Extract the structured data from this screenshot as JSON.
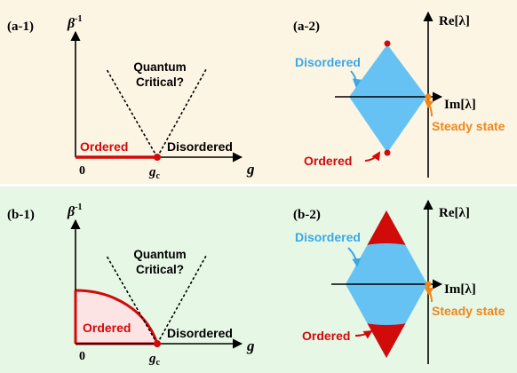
{
  "colors": {
    "top_bg": "#fdf5e4",
    "bottom_bg": "#e6f7e6",
    "disordered_blue": "#66c2f3",
    "disordered_text": "#3aa8e8",
    "ordered_red": "#d10a0a",
    "ordered_fill": "#fde4e4",
    "steady_orange": "#f0861a",
    "axis": "#000000"
  },
  "panel_a1": {
    "label": "(a-1)",
    "y_axis_base": "β",
    "y_axis_sup": "-1",
    "x_axis": "g",
    "origin": "0",
    "critical_base": "g",
    "critical_sub": "c",
    "quantum_line1": "Quantum",
    "quantum_line2": "Critical?",
    "ordered": "Ordered",
    "disordered": "Disordered"
  },
  "panel_a2": {
    "label": "(a-2)",
    "re_axis": "Re[λ]",
    "im_axis": "Im[λ]",
    "disordered": "Disordered",
    "ordered": "Ordered",
    "steady": "Steady state"
  },
  "panel_b1": {
    "label": "(b-1)",
    "y_axis_base": "β",
    "y_axis_sup": "-1",
    "x_axis": "g",
    "origin": "0",
    "critical_base": "g",
    "critical_sub": "c",
    "quantum_line1": "Quantum",
    "quantum_line2": "Critical?",
    "ordered": "Ordered",
    "disordered": "Disordered"
  },
  "panel_b2": {
    "label": "(b-2)",
    "re_axis": "Re[λ]",
    "im_axis": "Im[λ]",
    "disordered": "Disordered",
    "ordered": "Ordered",
    "steady": "Steady state"
  }
}
